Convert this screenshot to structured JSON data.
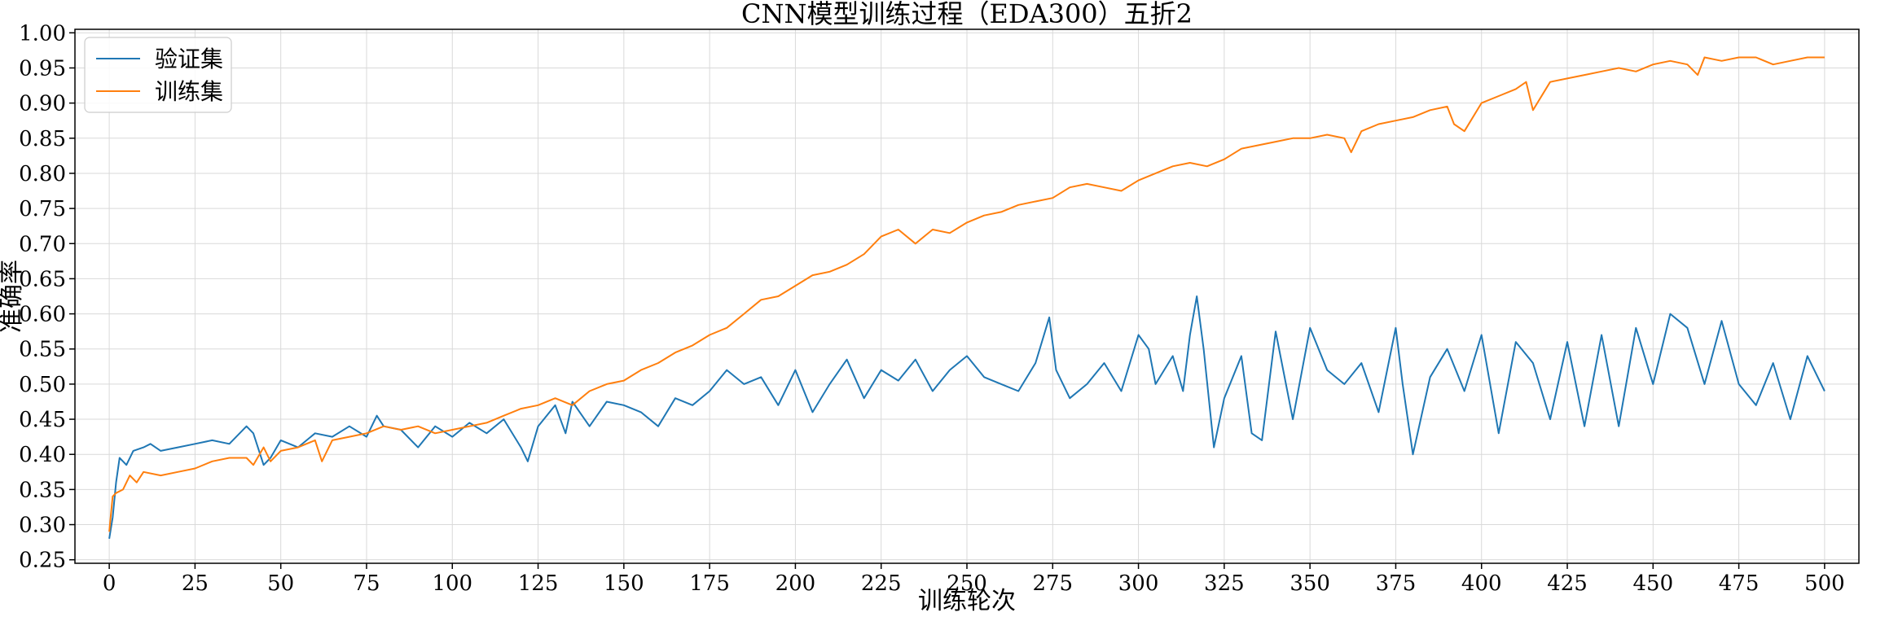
{
  "chart_data": {
    "type": "line",
    "title": "CNN模型训练过程（EDA300）五折2",
    "xlabel": "训练轮次",
    "ylabel": "准确率",
    "xlim": [
      -10,
      510
    ],
    "ylim": [
      0.245,
      1.005
    ],
    "x_ticks": [
      0,
      25,
      50,
      75,
      100,
      125,
      150,
      175,
      200,
      225,
      250,
      275,
      300,
      325,
      350,
      375,
      400,
      425,
      450,
      475,
      500
    ],
    "y_ticks": [
      0.25,
      0.3,
      0.35,
      0.4,
      0.45,
      0.5,
      0.55,
      0.6,
      0.65,
      0.7,
      0.75,
      0.8,
      0.85,
      0.9,
      0.95,
      1.0
    ],
    "x_tick_labels": [
      "0",
      "25",
      "50",
      "75",
      "100",
      "125",
      "150",
      "175",
      "200",
      "225",
      "250",
      "275",
      "300",
      "325",
      "350",
      "375",
      "400",
      "425",
      "450",
      "475",
      "500"
    ],
    "y_tick_labels": [
      "0.25",
      "0.30",
      "0.35",
      "0.40",
      "0.45",
      "0.50",
      "0.55",
      "0.60",
      "0.65",
      "0.70",
      "0.75",
      "0.80",
      "0.85",
      "0.90",
      "0.95",
      "1.00"
    ],
    "grid": true,
    "legend_position": "top-left",
    "series": [
      {
        "name": "验证集",
        "color": "#1f77b4",
        "x": [
          0,
          1,
          2,
          3,
          4,
          5,
          7,
          10,
          12,
          15,
          20,
          25,
          30,
          35,
          40,
          42,
          45,
          47,
          50,
          55,
          60,
          65,
          70,
          75,
          78,
          80,
          85,
          90,
          95,
          100,
          105,
          110,
          115,
          120,
          122,
          125,
          130,
          133,
          135,
          140,
          145,
          150,
          155,
          160,
          165,
          170,
          175,
          180,
          185,
          190,
          195,
          200,
          205,
          210,
          215,
          220,
          225,
          230,
          235,
          240,
          245,
          250,
          255,
          260,
          265,
          270,
          274,
          276,
          280,
          285,
          290,
          295,
          300,
          303,
          305,
          310,
          313,
          315,
          317,
          319,
          322,
          325,
          330,
          333,
          336,
          340,
          345,
          350,
          355,
          360,
          365,
          370,
          375,
          377,
          380,
          385,
          390,
          395,
          400,
          405,
          410,
          415,
          420,
          425,
          430,
          435,
          440,
          445,
          450,
          455,
          460,
          465,
          470,
          475,
          480,
          485,
          490,
          495,
          500
        ],
        "y": [
          0.28,
          0.31,
          0.36,
          0.395,
          0.39,
          0.385,
          0.405,
          0.41,
          0.415,
          0.405,
          0.41,
          0.415,
          0.42,
          0.415,
          0.44,
          0.43,
          0.385,
          0.395,
          0.42,
          0.41,
          0.43,
          0.425,
          0.44,
          0.425,
          0.455,
          0.44,
          0.435,
          0.41,
          0.44,
          0.425,
          0.445,
          0.43,
          0.45,
          0.41,
          0.39,
          0.44,
          0.47,
          0.43,
          0.475,
          0.44,
          0.475,
          0.47,
          0.46,
          0.44,
          0.48,
          0.47,
          0.49,
          0.52,
          0.5,
          0.51,
          0.47,
          0.52,
          0.46,
          0.5,
          0.535,
          0.48,
          0.52,
          0.505,
          0.535,
          0.49,
          0.52,
          0.54,
          0.51,
          0.5,
          0.49,
          0.53,
          0.595,
          0.52,
          0.48,
          0.5,
          0.53,
          0.49,
          0.57,
          0.55,
          0.5,
          0.54,
          0.49,
          0.57,
          0.625,
          0.55,
          0.41,
          0.48,
          0.54,
          0.43,
          0.42,
          0.575,
          0.45,
          0.58,
          0.52,
          0.5,
          0.53,
          0.46,
          0.58,
          0.5,
          0.4,
          0.51,
          0.55,
          0.49,
          0.57,
          0.43,
          0.56,
          0.53,
          0.45,
          0.56,
          0.44,
          0.57,
          0.44,
          0.58,
          0.5,
          0.6,
          0.58,
          0.5,
          0.59,
          0.5,
          0.47,
          0.53,
          0.45,
          0.54,
          0.49
        ]
      },
      {
        "name": "训练集",
        "color": "#ff7f0e",
        "x": [
          0,
          1,
          2,
          4,
          6,
          8,
          10,
          15,
          20,
          25,
          30,
          35,
          40,
          42,
          45,
          47,
          50,
          55,
          60,
          62,
          65,
          70,
          75,
          80,
          85,
          90,
          95,
          100,
          105,
          110,
          115,
          120,
          125,
          130,
          135,
          140,
          145,
          150,
          155,
          160,
          165,
          170,
          175,
          180,
          185,
          190,
          195,
          200,
          205,
          210,
          215,
          220,
          225,
          230,
          235,
          240,
          245,
          250,
          255,
          260,
          265,
          270,
          275,
          280,
          285,
          290,
          295,
          300,
          305,
          310,
          315,
          320,
          325,
          330,
          335,
          340,
          345,
          350,
          355,
          360,
          362,
          365,
          370,
          375,
          380,
          385,
          390,
          392,
          395,
          400,
          405,
          410,
          413,
          415,
          420,
          425,
          430,
          435,
          440,
          445,
          450,
          455,
          460,
          463,
          465,
          470,
          475,
          480,
          485,
          490,
          495,
          500
        ],
        "y": [
          0.29,
          0.34,
          0.345,
          0.35,
          0.37,
          0.36,
          0.375,
          0.37,
          0.375,
          0.38,
          0.39,
          0.395,
          0.395,
          0.385,
          0.41,
          0.39,
          0.405,
          0.41,
          0.42,
          0.39,
          0.42,
          0.425,
          0.43,
          0.44,
          0.435,
          0.44,
          0.43,
          0.435,
          0.44,
          0.445,
          0.455,
          0.465,
          0.47,
          0.48,
          0.47,
          0.49,
          0.5,
          0.505,
          0.52,
          0.53,
          0.545,
          0.555,
          0.57,
          0.58,
          0.6,
          0.62,
          0.625,
          0.64,
          0.655,
          0.66,
          0.67,
          0.685,
          0.71,
          0.72,
          0.7,
          0.72,
          0.715,
          0.73,
          0.74,
          0.745,
          0.755,
          0.76,
          0.765,
          0.78,
          0.785,
          0.78,
          0.775,
          0.79,
          0.8,
          0.81,
          0.815,
          0.81,
          0.82,
          0.835,
          0.84,
          0.845,
          0.85,
          0.85,
          0.855,
          0.85,
          0.83,
          0.86,
          0.87,
          0.875,
          0.88,
          0.89,
          0.895,
          0.87,
          0.86,
          0.9,
          0.91,
          0.92,
          0.93,
          0.89,
          0.93,
          0.935,
          0.94,
          0.945,
          0.95,
          0.945,
          0.955,
          0.96,
          0.955,
          0.94,
          0.965,
          0.96,
          0.965,
          0.965,
          0.955,
          0.96,
          0.965,
          0.965
        ]
      }
    ]
  }
}
